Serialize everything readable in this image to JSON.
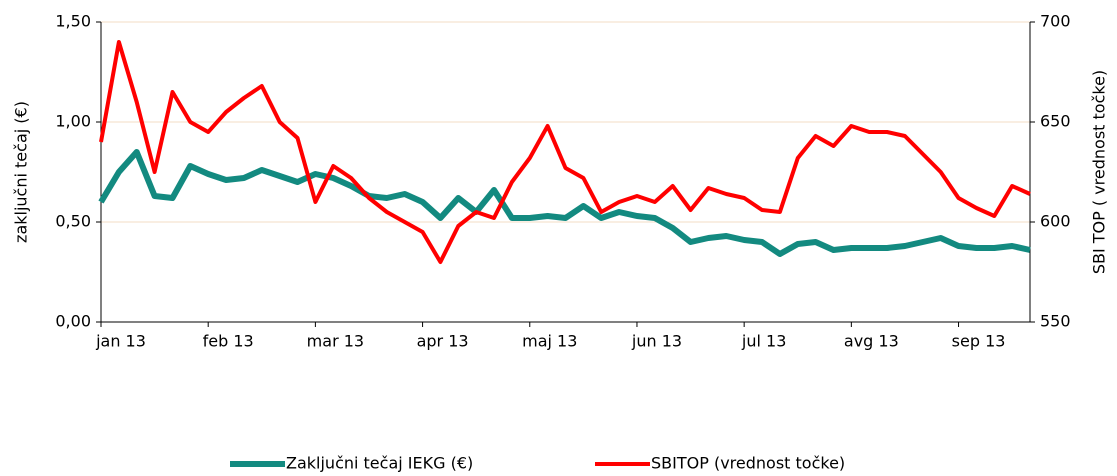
{
  "chart_data": {
    "type": "line",
    "categories": [
      "jan 13",
      null,
      null,
      null,
      null,
      null,
      "feb 13",
      null,
      null,
      null,
      null,
      null,
      "mar 13",
      null,
      null,
      null,
      null,
      null,
      "apr 13",
      null,
      null,
      null,
      null,
      null,
      "maj 13",
      null,
      null,
      null,
      null,
      null,
      "jun 13",
      null,
      null,
      null,
      null,
      null,
      "jul 13",
      null,
      null,
      null,
      null,
      null,
      "avg 13",
      null,
      null,
      null,
      null,
      null,
      "sep 13",
      null,
      null,
      null,
      null
    ],
    "series": [
      {
        "name": "Zaključni tečaj IEKG (€)",
        "color": "#138a80",
        "axis": "y",
        "values": [
          0.6,
          0.75,
          0.85,
          0.63,
          0.62,
          0.78,
          0.74,
          0.71,
          0.72,
          0.76,
          0.73,
          0.7,
          0.74,
          0.72,
          0.68,
          0.63,
          0.62,
          0.64,
          0.6,
          0.52,
          0.62,
          0.55,
          0.66,
          0.52,
          0.52,
          0.53,
          0.52,
          0.58,
          0.52,
          0.55,
          0.53,
          0.52,
          0.47,
          0.4,
          0.42,
          0.43,
          0.41,
          0.4,
          0.34,
          0.39,
          0.4,
          0.36,
          0.37,
          0.37,
          0.37,
          0.38,
          0.4,
          0.42,
          0.38,
          0.37,
          0.37,
          0.38,
          0.36
        ]
      },
      {
        "name": "SBITOP (vrednost točke)",
        "color": "#ff0000",
        "axis": "y2",
        "values": [
          640,
          690,
          660,
          625,
          665,
          650,
          645,
          655,
          662,
          668,
          650,
          642,
          610,
          628,
          622,
          612,
          605,
          600,
          595,
          580,
          598,
          605,
          602,
          620,
          632,
          648,
          627,
          622,
          605,
          610,
          613,
          610,
          618,
          606,
          617,
          614,
          612,
          606,
          605,
          632,
          643,
          638,
          648,
          645,
          645,
          643,
          634,
          625,
          612,
          607,
          603,
          618,
          614
        ]
      }
    ],
    "y_label": "zaključni tečaj  (€)",
    "y2_label": "SBI TOP ( vrednost točke)",
    "ylim": [
      0,
      1.5
    ],
    "yticks": [
      {
        "value": 0,
        "label": "0,00"
      },
      {
        "value": 0.5,
        "label": "0,50"
      },
      {
        "value": 1,
        "label": "1,00"
      },
      {
        "value": 1.5,
        "label": "1,50"
      }
    ],
    "y2lim": [
      550,
      700
    ],
    "y2ticks": [
      550,
      600,
      650,
      700
    ],
    "grid": true,
    "legend": "bottom"
  }
}
